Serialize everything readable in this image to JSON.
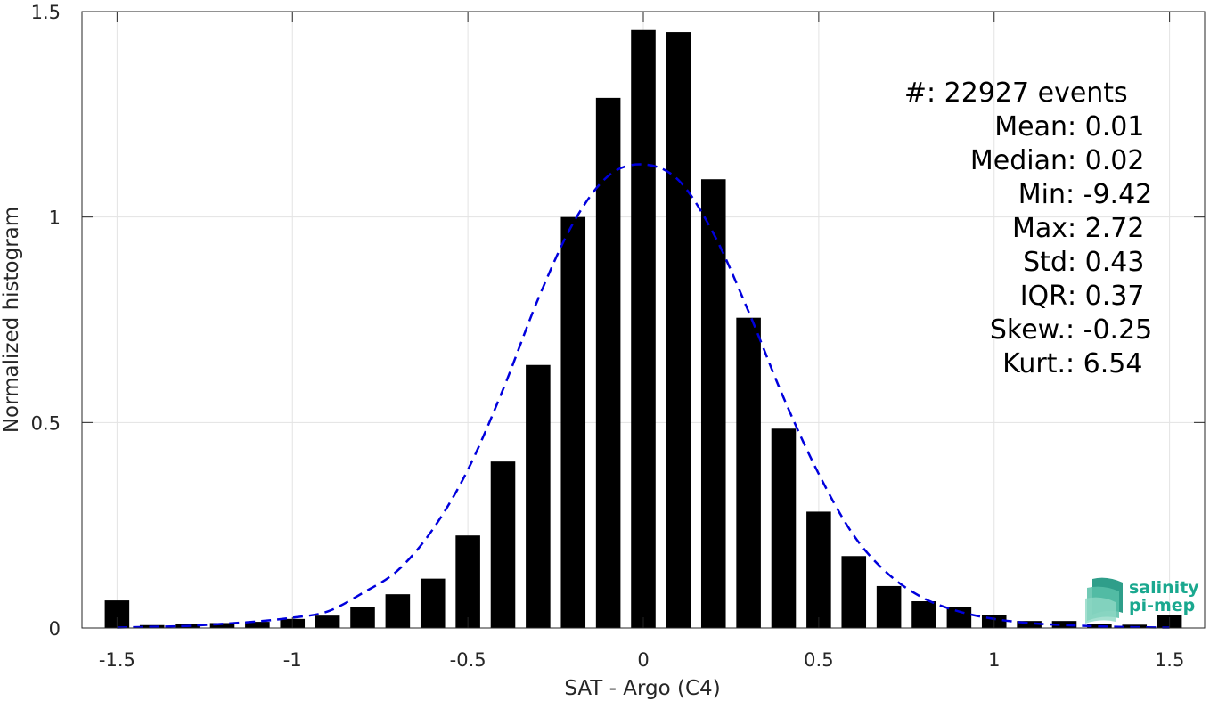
{
  "chart_data": {
    "type": "bar",
    "xlabel": "SAT - Argo (C4)",
    "ylabel": "Normalized histogram",
    "xlim": [
      -1.6,
      1.6
    ],
    "ylim": [
      0,
      1.5
    ],
    "xticks": [
      -1.5,
      -1,
      -0.5,
      0,
      0.5,
      1,
      1.5
    ],
    "xtick_labels": [
      "-1.5",
      "-1",
      "-0.5",
      "0",
      "0.5",
      "1",
      "1.5"
    ],
    "yticks": [
      0,
      0.5,
      1,
      1.5
    ],
    "ytick_labels": [
      "0",
      "0.5",
      "1",
      "1.5"
    ],
    "grid": true,
    "bar_color": "#000000",
    "bar_width": 0.07,
    "bins": [
      -1.5,
      -1.4,
      -1.3,
      -1.2,
      -1.1,
      -1.0,
      -0.9,
      -0.8,
      -0.7,
      -0.6,
      -0.5,
      -0.4,
      -0.3,
      -0.2,
      -0.1,
      0.0,
      0.1,
      0.2,
      0.3,
      0.4,
      0.5,
      0.6,
      0.7,
      0.8,
      0.9,
      1.0,
      1.1,
      1.2,
      1.3,
      1.4,
      1.5
    ],
    "values": [
      0.067,
      0.007,
      0.01,
      0.012,
      0.015,
      0.022,
      0.03,
      0.05,
      0.082,
      0.12,
      0.225,
      0.405,
      0.64,
      1.0,
      1.29,
      1.455,
      1.45,
      1.092,
      0.755,
      0.485,
      0.283,
      0.175,
      0.102,
      0.065,
      0.05,
      0.031,
      0.017,
      0.017,
      0.009,
      0.008,
      0.031
    ],
    "fit_curve": {
      "type": "gaussian",
      "color": "#0000dd",
      "style": "dashed",
      "x": [
        -1.5,
        -1.4,
        -1.3,
        -1.2,
        -1.1,
        -1.0,
        -0.9,
        -0.8,
        -0.7,
        -0.6,
        -0.5,
        -0.4,
        -0.3,
        -0.2,
        -0.1,
        0.0,
        0.1,
        0.2,
        0.3,
        0.4,
        0.5,
        0.6,
        0.7,
        0.8,
        0.9,
        1.0,
        1.1,
        1.2,
        1.3,
        1.4,
        1.5
      ],
      "y": [
        0.001,
        0.003,
        0.005,
        0.01,
        0.016,
        0.025,
        0.04,
        0.085,
        0.14,
        0.24,
        0.385,
        0.58,
        0.8,
        0.985,
        1.1,
        1.128,
        1.09,
        0.96,
        0.77,
        0.56,
        0.375,
        0.225,
        0.13,
        0.072,
        0.04,
        0.022,
        0.012,
        0.007,
        0.004,
        0.002,
        0.001
      ]
    }
  },
  "stats": [
    {
      "label": "#  ",
      "value": ": 22927 events"
    },
    {
      "label": "Mean ",
      "value": ": 0.01"
    },
    {
      "label": "Median ",
      "value": ": 0.02"
    },
    {
      "label": "Min ",
      "value": ": -9.42"
    },
    {
      "label": "Max ",
      "value": ": 2.72"
    },
    {
      "label": "Std ",
      "value": ": 0.43"
    },
    {
      "label": "IQR ",
      "value": ": 0.37"
    },
    {
      "label": "Skew. ",
      "value": ": -0.25"
    },
    {
      "label": "Kurt. ",
      "value": ": 6.54"
    }
  ],
  "logo": {
    "line1": "salinity",
    "line2": "pi-mep",
    "color": "#1aa88f"
  }
}
